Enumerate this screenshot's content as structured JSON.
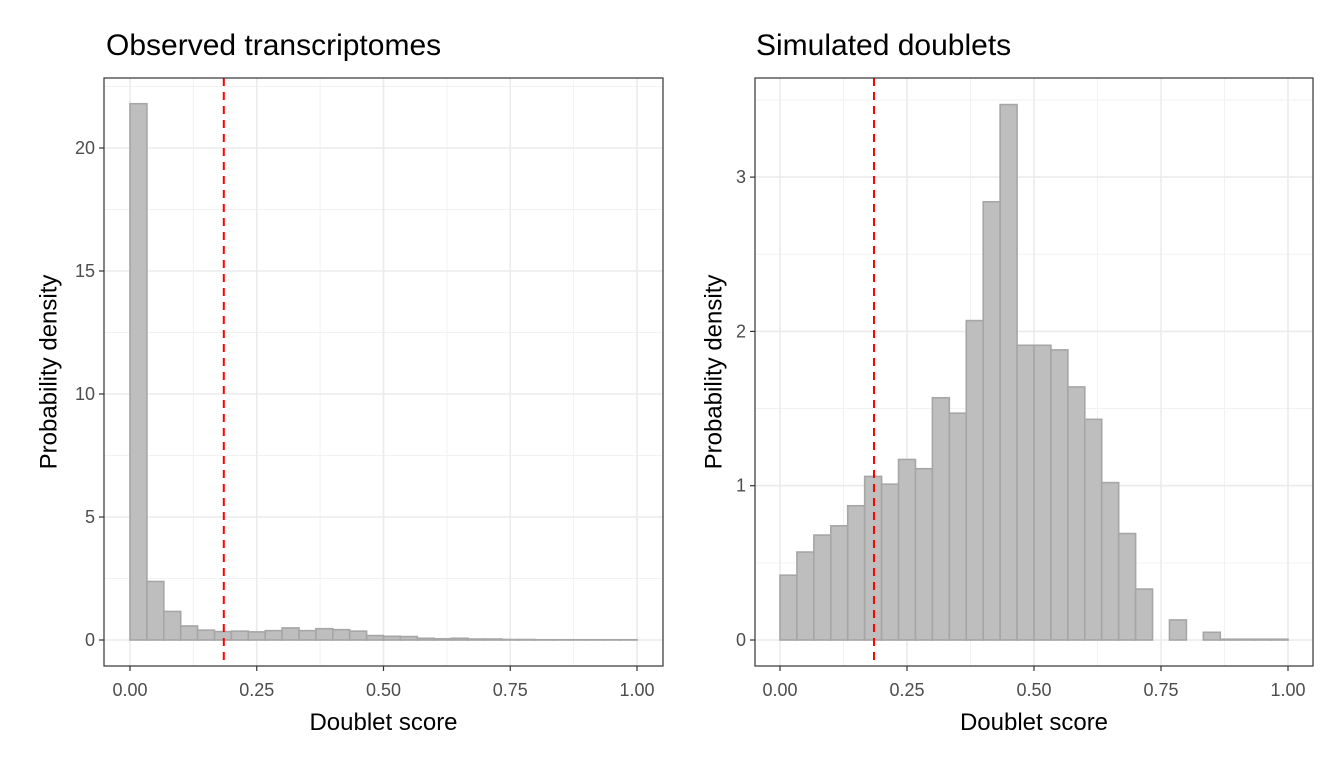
{
  "chart_data": [
    {
      "type": "bar",
      "title": "Observed transcriptomes",
      "xlabel": "Doublet score",
      "ylabel": "Probability density",
      "xlim": [
        0,
        1
      ],
      "ylim": [
        0,
        22
      ],
      "xticks": [
        "0.00",
        "0.25",
        "0.50",
        "0.75",
        "1.00"
      ],
      "yticks": [
        "0",
        "5",
        "10",
        "15",
        "20"
      ],
      "ytick_values": [
        0,
        5,
        10,
        15,
        20
      ],
      "grid": true,
      "bin_range": [
        0,
        1
      ],
      "values": [
        21.8,
        2.38,
        1.16,
        0.57,
        0.4,
        0.34,
        0.36,
        0.33,
        0.38,
        0.49,
        0.38,
        0.46,
        0.42,
        0.36,
        0.18,
        0.15,
        0.14,
        0.07,
        0.05,
        0.07,
        0.04,
        0.04,
        0.02,
        0.02,
        0.01,
        0.01,
        0.01,
        0.01,
        0.01,
        0.01
      ],
      "threshold": 0.185,
      "bar_fill": "#bebebe",
      "bar_stroke": "#a6a6a6",
      "threshold_color": "#ff0000"
    },
    {
      "type": "bar",
      "title": "Simulated doublets",
      "xlabel": "Doublet score",
      "ylabel": "Probability density",
      "xlim": [
        0,
        1
      ],
      "ylim": [
        0,
        3.5
      ],
      "xticks": [
        "0.00",
        "0.25",
        "0.50",
        "0.75",
        "1.00"
      ],
      "yticks": [
        "0",
        "1",
        "2",
        "3"
      ],
      "ytick_values": [
        0,
        1,
        2,
        3
      ],
      "grid": true,
      "bin_range": [
        0,
        1
      ],
      "values": [
        0.42,
        0.57,
        0.68,
        0.74,
        0.87,
        1.06,
        1.01,
        1.17,
        1.11,
        1.57,
        1.47,
        2.07,
        2.84,
        3.47,
        1.91,
        1.91,
        1.88,
        1.64,
        1.43,
        1.02,
        0.69,
        0.33,
        0,
        0.13,
        0,
        0.05,
        0.005,
        0.005,
        0.005,
        0.005
      ],
      "threshold": 0.185,
      "bar_fill": "#bebebe",
      "bar_stroke": "#a6a6a6",
      "threshold_color": "#ff0000"
    }
  ]
}
